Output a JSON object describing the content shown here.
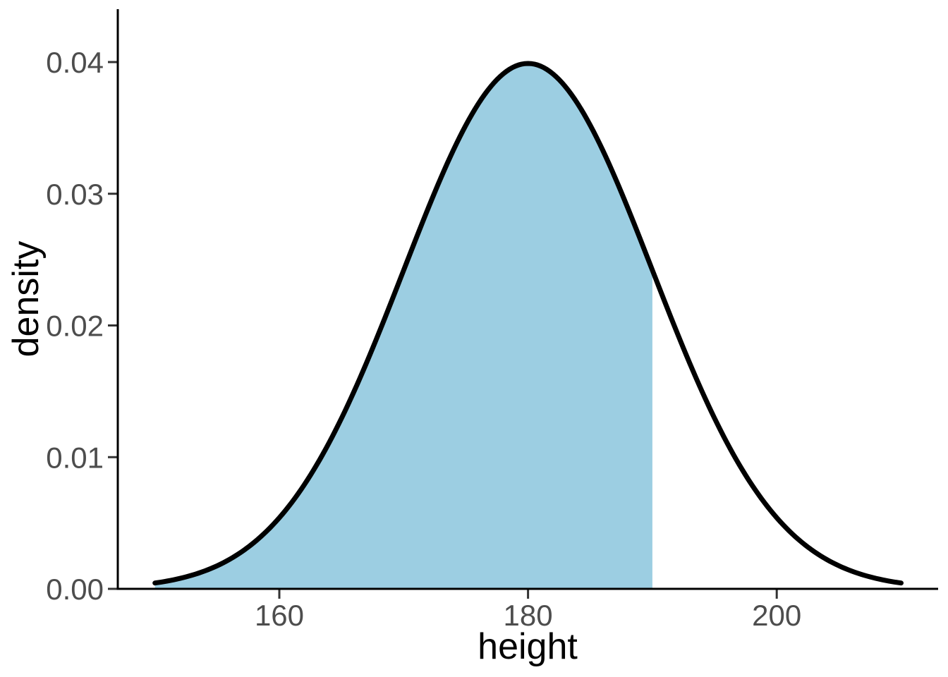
{
  "chart_data": {
    "type": "area",
    "title": "",
    "xlabel": "height",
    "ylabel": "density",
    "x_tick_labels": [
      "160",
      "180",
      "200"
    ],
    "x_tick_values": [
      160,
      180,
      200
    ],
    "y_tick_labels": [
      "0.00",
      "0.01",
      "0.02",
      "0.03",
      "0.04"
    ],
    "y_tick_values": [
      0,
      0.01,
      0.02,
      0.03,
      0.04
    ],
    "xlim": [
      150,
      210
    ],
    "ylim": [
      0,
      0.044
    ],
    "grid": false,
    "legend": "none",
    "background_color": "#FFFFFF",
    "distribution": {
      "type": "normal",
      "mean": 180,
      "sd": 10
    },
    "curve": {
      "x_start": 150,
      "x_end": 210,
      "color": "#000000",
      "stroke_width": 7
    },
    "shaded_region": {
      "x_from": 150,
      "x_to": 190,
      "fill_color": "#9CCEE2"
    },
    "peak": {
      "x": 180,
      "density": 0.0399
    },
    "curve_points": [
      {
        "x": 150,
        "density": 0.00044
      },
      {
        "x": 155,
        "density": 0.00175
      },
      {
        "x": 160,
        "density": 0.0054
      },
      {
        "x": 165,
        "density": 0.01295
      },
      {
        "x": 170,
        "density": 0.0242
      },
      {
        "x": 175,
        "density": 0.03521
      },
      {
        "x": 180,
        "density": 0.03989
      },
      {
        "x": 185,
        "density": 0.03521
      },
      {
        "x": 190,
        "density": 0.0242
      },
      {
        "x": 195,
        "density": 0.01295
      },
      {
        "x": 200,
        "density": 0.0054
      },
      {
        "x": 205,
        "density": 0.00175
      },
      {
        "x": 210,
        "density": 0.00044
      }
    ],
    "axis_color": "#000000",
    "tick_mark_color": "#333333",
    "tick_label_color": "#4D4D4D",
    "axis_title_color": "#000000"
  }
}
